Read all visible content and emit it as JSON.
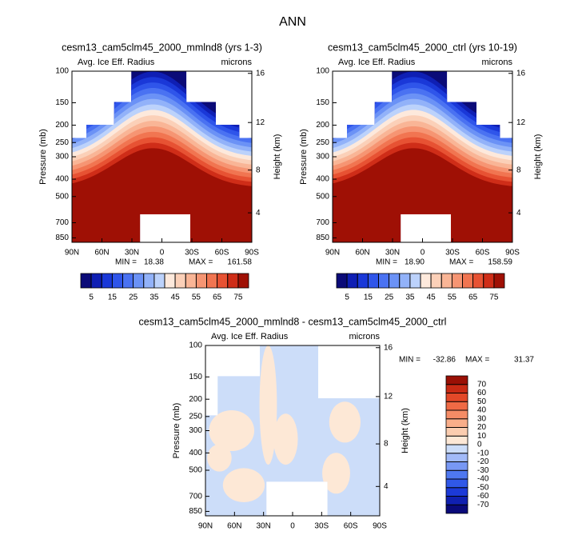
{
  "title": "ANN",
  "chart_data": [
    {
      "type": "contour",
      "title": "cesm13_cam5clm45_2000_mmlnd8 (yrs 1-3)",
      "subtitle_left": "Avg. Ice Eff. Radius",
      "subtitle_right": "microns",
      "ylabel": "Pressure (mb)",
      "y2label": "Height (km)",
      "xlim": [
        90,
        -90
      ],
      "xticks": [
        {
          "value": 90,
          "label": "90N"
        },
        {
          "value": 60,
          "label": "60N"
        },
        {
          "value": 30,
          "label": "30N"
        },
        0,
        {
          "value": -30,
          "label": "30S"
        },
        {
          "value": -60,
          "label": "60S"
        },
        {
          "value": -90,
          "label": "90S"
        }
      ],
      "ylim": [
        100,
        900
      ],
      "ylog": true,
      "yticks": [
        100,
        150,
        200,
        250,
        300,
        400,
        500,
        700,
        850
      ],
      "y2ticks": [
        4,
        8,
        12,
        16
      ],
      "stats": [
        {
          "name": "MIN =",
          "value": 18.38
        },
        {
          "name": "MAX =",
          "value": 161.58
        }
      ],
      "colorbar": {
        "orientation": "horizontal",
        "label_every": 2,
        "levels": [
          5,
          10,
          15,
          20,
          25,
          30,
          35,
          40,
          45,
          50,
          55,
          60,
          65,
          70,
          75
        ],
        "colors": [
          "#0b0b78",
          "#0f1fb4",
          "#1a38d8",
          "#2f55ea",
          "#4a72f2",
          "#6b92f6",
          "#92b2f9",
          "#bcd2fb",
          "#fde9dc",
          "#fbd0b8",
          "#f9b596",
          "#f69573",
          "#f17551",
          "#e75233",
          "#cf2d18",
          "#9f1005"
        ]
      }
    },
    {
      "type": "contour",
      "title": "cesm13_cam5clm45_2000_ctrl (yrs 10-19)",
      "subtitle_left": "Avg. Ice Eff. Radius",
      "subtitle_right": "microns",
      "ylabel": "Pressure (mb)",
      "y2label": "Height (km)",
      "xlim": [
        90,
        -90
      ],
      "xticks": [
        {
          "value": 90,
          "label": "90N"
        },
        {
          "value": 60,
          "label": "60N"
        },
        {
          "value": 30,
          "label": "30N"
        },
        0,
        {
          "value": -30,
          "label": "30S"
        },
        {
          "value": -60,
          "label": "60S"
        },
        {
          "value": -90,
          "label": "90S"
        }
      ],
      "ylim": [
        100,
        900
      ],
      "ylog": true,
      "yticks": [
        100,
        150,
        200,
        250,
        300,
        400,
        500,
        700,
        850
      ],
      "y2ticks": [
        4,
        8,
        12,
        16
      ],
      "stats": [
        {
          "name": "MIN =",
          "value": 18.9,
          "value_label": "18.90"
        },
        {
          "name": "MAX =",
          "value": 158.59
        }
      ],
      "colorbar": {
        "orientation": "horizontal",
        "label_every": 2,
        "levels": [
          5,
          10,
          15,
          20,
          25,
          30,
          35,
          40,
          45,
          50,
          55,
          60,
          65,
          70,
          75
        ],
        "colors": [
          "#0b0b78",
          "#0f1fb4",
          "#1a38d8",
          "#2f55ea",
          "#4a72f2",
          "#6b92f6",
          "#92b2f9",
          "#bcd2fb",
          "#fde9dc",
          "#fbd0b8",
          "#f9b596",
          "#f69573",
          "#f17551",
          "#e75233",
          "#cf2d18",
          "#9f1005"
        ]
      }
    },
    {
      "type": "contour-diff",
      "title": "cesm13_cam5clm45_2000_mmlnd8 - cesm13_cam5clm45_2000_ctrl",
      "subtitle_left": "Avg. Ice Eff. Radius",
      "subtitle_right": "microns",
      "ylabel": "Pressure (mb)",
      "y2label": "Height (km)",
      "xlim": [
        90,
        -90
      ],
      "xticks": [
        {
          "value": 90,
          "label": "90N"
        },
        {
          "value": 60,
          "label": "60N"
        },
        {
          "value": 30,
          "label": "30N"
        },
        0,
        {
          "value": -30,
          "label": "30S"
        },
        {
          "value": -60,
          "label": "60S"
        },
        {
          "value": -90,
          "label": "90S"
        }
      ],
      "ylim": [
        100,
        900
      ],
      "ylog": true,
      "yticks": [
        100,
        150,
        200,
        250,
        300,
        400,
        500,
        700,
        850
      ],
      "y2ticks": [
        4,
        8,
        12,
        16
      ],
      "stats": [
        {
          "name": "MIN =",
          "value": -32.86
        },
        {
          "name": "MAX =",
          "value": 31.37
        }
      ],
      "colorbar": {
        "orientation": "vertical",
        "label_every": 1,
        "levels": [
          -70,
          -60,
          -50,
          -40,
          -30,
          -20,
          -10,
          0,
          10,
          20,
          30,
          40,
          50,
          60,
          70
        ],
        "colors": [
          "#0a0a7a",
          "#1020b0",
          "#1c3ad8",
          "#3058e8",
          "#4f78f0",
          "#7898f4",
          "#a2baf8",
          "#ccddf9",
          "#fde8d6",
          "#fbcdb0",
          "#f9ae8a",
          "#f58c66",
          "#ef6a45",
          "#e34828",
          "#c92a14",
          "#9a1005"
        ]
      }
    }
  ]
}
